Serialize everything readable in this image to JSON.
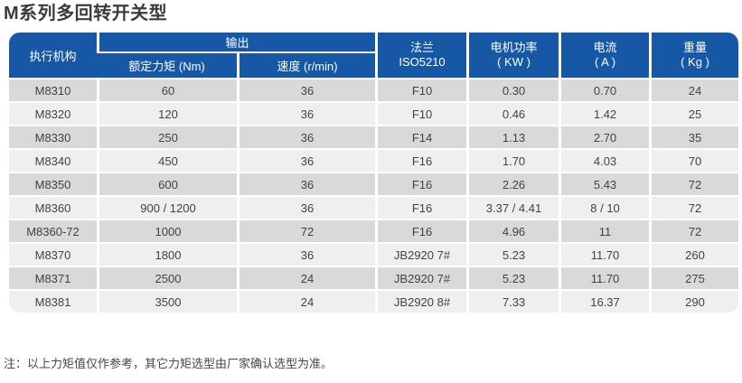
{
  "title": "M系列多回转开关型",
  "note": "注：以上力矩值仅作参考，其它力矩选型由厂家确认选型为准。",
  "colors": {
    "header_bg": "#1658a5",
    "row_dark": "#d9d9d9",
    "row_light": "#efefef"
  },
  "table": {
    "headers": {
      "actuator": "执行机构",
      "output_group": "输出",
      "rated_torque": "额定力矩 (Nm)",
      "speed": "速度 (r/min)",
      "flange": [
        "法兰",
        "ISO5210"
      ],
      "motor_power": [
        "电机功率",
        "( KW )"
      ],
      "current": [
        "电流",
        "( A )"
      ],
      "weight": [
        "重量",
        "( Kg )"
      ]
    },
    "rows": [
      [
        "M8310",
        "60",
        "36",
        "F10",
        "0.30",
        "0.70",
        "24"
      ],
      [
        "M8320",
        "120",
        "36",
        "F10",
        "0.46",
        "1.42",
        "25"
      ],
      [
        "M8330",
        "250",
        "36",
        "F14",
        "1.13",
        "2.70",
        "35"
      ],
      [
        "M8340",
        "450",
        "36",
        "F16",
        "1.70",
        "4.03",
        "70"
      ],
      [
        "M8350",
        "600",
        "36",
        "F16",
        "2.26",
        "5.43",
        "72"
      ],
      [
        "M8360",
        "900 / 1200",
        "36",
        "F16",
        "3.37 / 4.41",
        "8 / 10",
        "72"
      ],
      [
        "M8360-72",
        "1000",
        "72",
        "F16",
        "4.96",
        "11",
        "72"
      ],
      [
        "M8370",
        "1800",
        "36",
        "JB2920 7#",
        "5.23",
        "11.70",
        "260"
      ],
      [
        "M8371",
        "2500",
        "24",
        "JB2920 7#",
        "5.23",
        "11.70",
        "275"
      ],
      [
        "M8381",
        "3500",
        "24",
        "JB2920 8#",
        "7.33",
        "16.37",
        "290"
      ]
    ]
  }
}
